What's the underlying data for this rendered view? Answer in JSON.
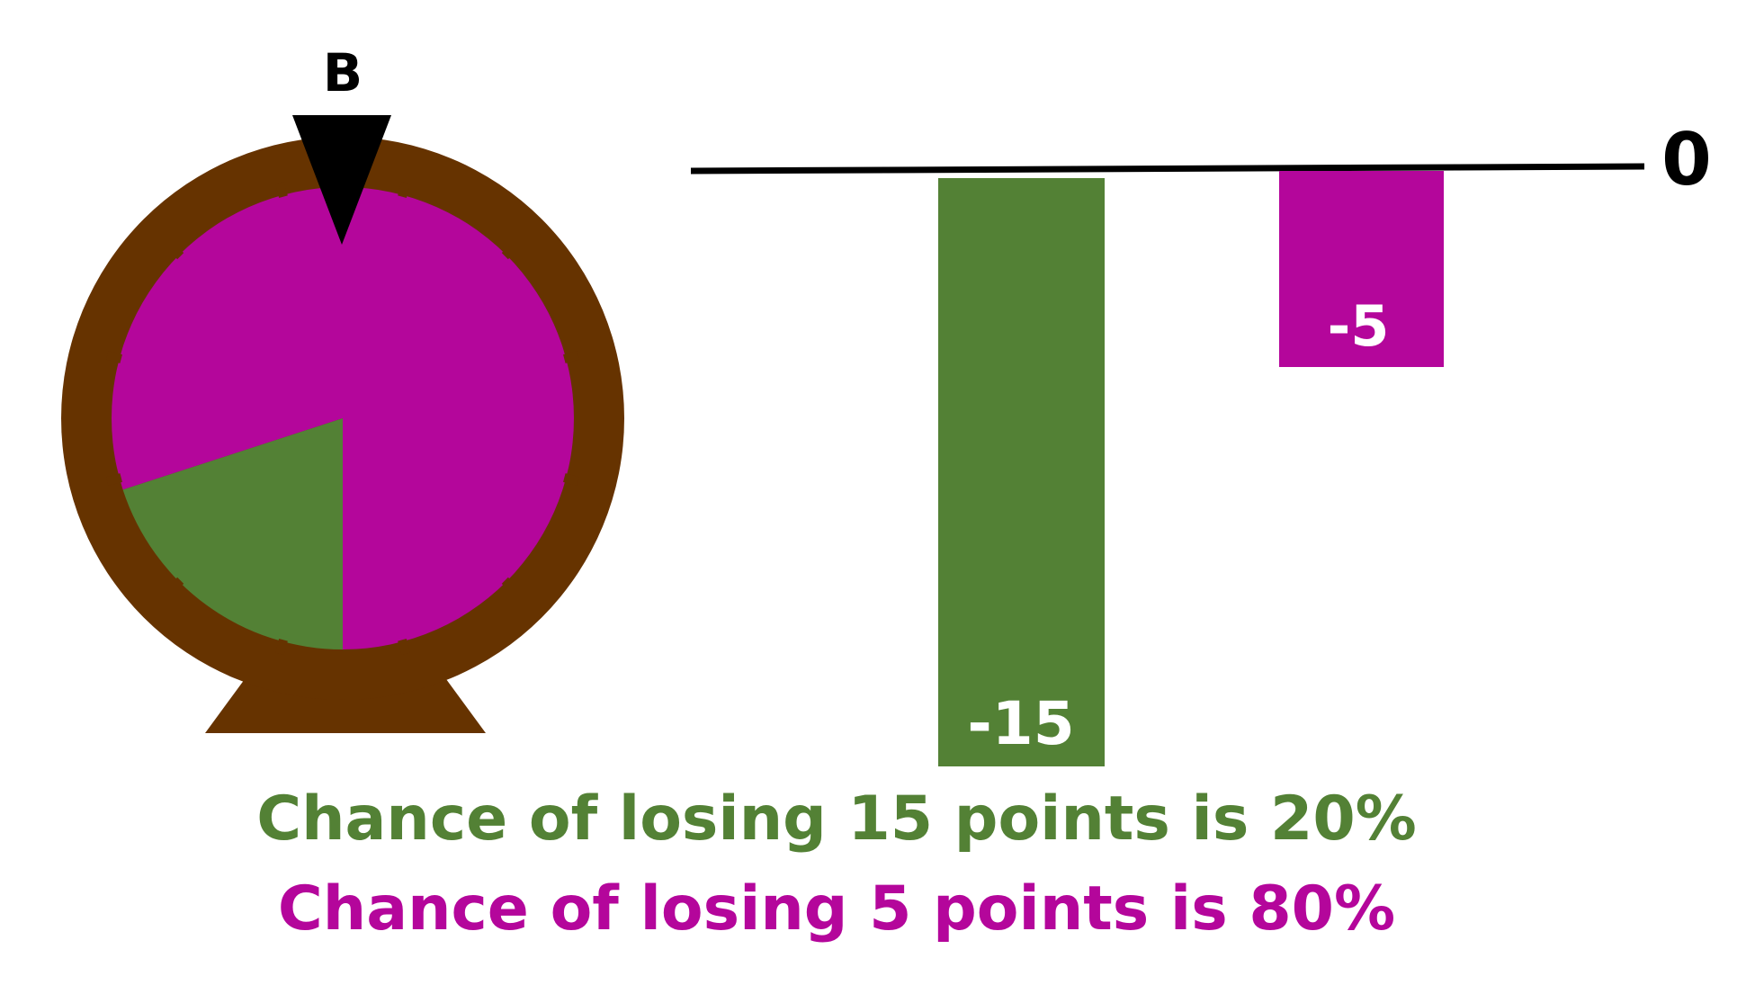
{
  "wheel": {
    "label": "B",
    "segments": [
      {
        "name": "lose-15",
        "share": 0.2,
        "color": "#538135"
      },
      {
        "name": "lose-5",
        "share": 0.8,
        "color": "#b4069b"
      }
    ],
    "rim_color": "#663300",
    "pointer_color": "#000000"
  },
  "chart_data": {
    "type": "bar",
    "categories": [
      "",
      ""
    ],
    "values": [
      -15,
      -5
    ],
    "data_labels": [
      "-15",
      "-5"
    ],
    "colors": [
      "#538135",
      "#b4069b"
    ],
    "baseline_label": "0",
    "ylim": [
      -15,
      0
    ],
    "title": "",
    "xlabel": "",
    "ylabel": ""
  },
  "captions": {
    "green": "Chance of losing 15 points is 20%",
    "purple": "Chance of losing 5 points is 80%"
  },
  "colors": {
    "green": "#538135",
    "purple": "#b4069b",
    "brown": "#663300",
    "black": "#000000"
  }
}
